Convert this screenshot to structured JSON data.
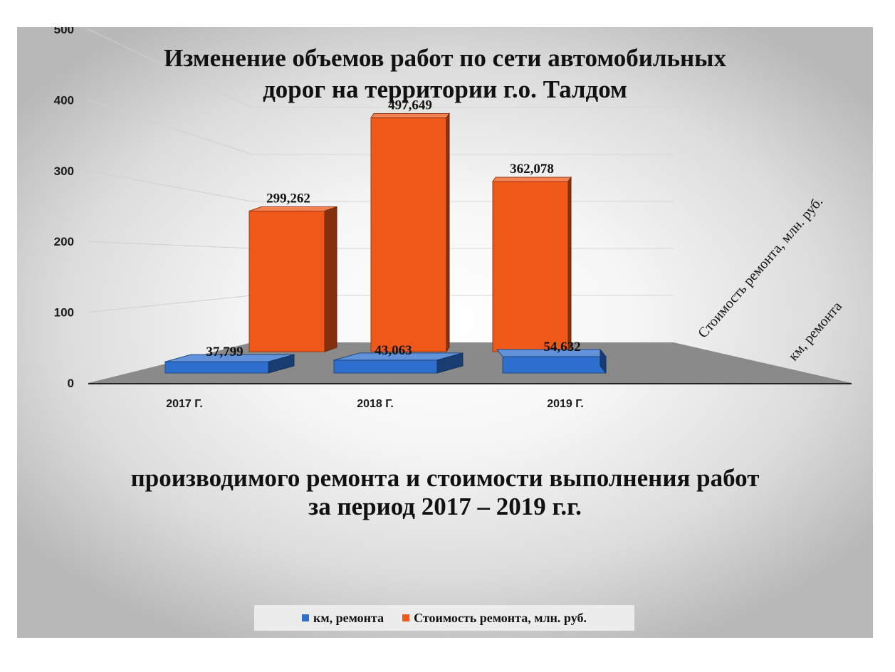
{
  "title_line1": "Изменение объемов работ по сети автомобильных",
  "title_line2": "дорог на территории г.о. Талдом",
  "subtitle_line1": "производимого ремонта и стоимости выполнения работ",
  "subtitle_line2": "за период 2017 – 2019 г.г.",
  "colors": {
    "km": "#2e6fce",
    "cost": "#f0581a"
  },
  "chart_data": {
    "type": "bar",
    "categories": [
      "2017 Г.",
      "2018 Г.",
      "2019 Г."
    ],
    "y_ticks": [
      "0",
      "100",
      "200",
      "300",
      "400",
      "500"
    ],
    "ylim": [
      0,
      500
    ],
    "series": [
      {
        "name": "км, ремонта",
        "values": [
          37.799,
          43.063,
          54.632
        ],
        "labels": [
          "37,799",
          "43,063",
          "54,632"
        ]
      },
      {
        "name": "Стоимость ремонта, млн. руб.",
        "values": [
          299.262,
          497.649,
          362.078
        ],
        "labels": [
          "299,262",
          "497,649",
          "362,078"
        ]
      }
    ],
    "legend": "bottom",
    "grid": true
  }
}
